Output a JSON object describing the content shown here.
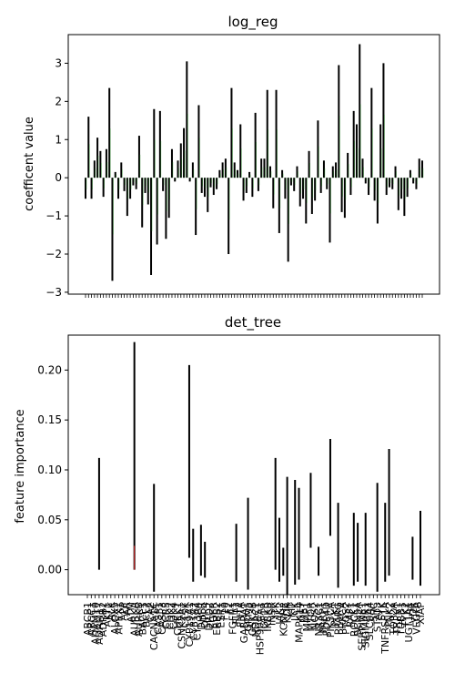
{
  "chart_data": [
    {
      "type": "bar",
      "title": "log_reg",
      "ylabel": "coefficent value",
      "xlabel": "",
      "ylim": [
        -3.05,
        3.75
      ],
      "yticks": [
        3,
        2,
        1,
        0,
        -1,
        -2,
        -3
      ],
      "ytick_labels": [
        "3",
        "2",
        "1",
        "0",
        "−1",
        "−2",
        "−3"
      ],
      "category_labels_shown": false,
      "grid": false,
      "bar_color": "#000000",
      "accent_color": "#2ca02c",
      "values": [
        -0.55,
        1.6,
        -0.55,
        0.45,
        1.05,
        0.7,
        -0.5,
        0.75,
        2.35,
        -2.7,
        0.15,
        -0.55,
        0.4,
        -0.35,
        -1.0,
        -0.55,
        -0.2,
        -0.3,
        1.1,
        -1.3,
        -0.4,
        -0.7,
        -2.55,
        1.8,
        -1.75,
        1.75,
        -0.35,
        -1.6,
        -1.05,
        0.75,
        -0.1,
        0.45,
        0.9,
        1.3,
        3.05,
        -0.1,
        0.4,
        -1.5,
        1.9,
        -0.4,
        -0.5,
        -0.9,
        -0.25,
        -0.45,
        -0.3,
        0.2,
        0.4,
        0.5,
        -2.0,
        2.35,
        0.4,
        0.2,
        1.4,
        -0.6,
        -0.4,
        0.15,
        -0.5,
        1.7,
        -0.35,
        0.5,
        0.5,
        2.3,
        0.3,
        -0.8,
        2.3,
        -1.45,
        0.2,
        -0.55,
        -2.2,
        -0.2,
        -0.35,
        0.3,
        -0.75,
        -0.55,
        -1.2,
        0.7,
        -0.95,
        -0.6,
        1.5,
        -0.4,
        0.45,
        -0.3,
        -1.7,
        0.3,
        0.4,
        2.95,
        -0.9,
        -1.05,
        0.65,
        -0.45,
        1.75,
        1.4,
        3.5,
        0.5,
        -0.15,
        -0.45,
        2.35,
        -0.6,
        -1.2,
        1.4,
        3.0,
        -0.45,
        -0.25,
        -0.3,
        0.3,
        -0.85,
        -0.55,
        -1.0,
        -0.5,
        0.2,
        -0.15,
        -0.3,
        0.5,
        0.45
      ]
    },
    {
      "type": "bar",
      "title": "det_tree",
      "ylabel": "feature importance",
      "xlabel": "",
      "ylim": [
        -0.025,
        0.235
      ],
      "yticks": [
        0.2,
        0.15,
        0.1,
        0.05,
        0.0
      ],
      "ytick_labels": [
        "0.20",
        "0.15",
        "0.10",
        "0.05",
        "0.00"
      ],
      "grid": false,
      "bar_color": "#000000",
      "accent_color": "#d62728",
      "category_labels": [
        "ABCB1",
        "ABCC1",
        "ADAM10",
        "ADAM17",
        "ADRB2",
        "AKT1",
        "ALK",
        "ALOX5",
        "APEX1",
        "APP",
        "AR",
        "ATM",
        "AURKA",
        "AURKB",
        "BACE1",
        "BCL2",
        "CA2",
        "CACNA1C",
        "CASP1",
        "CASP3",
        "CCR5",
        "CDK2",
        "CDK4",
        "CHEK1",
        "CSNK2A1",
        "CTSK",
        "CYP19A1",
        "CYP1A2",
        "CYP3A4",
        "DHFR",
        "DPP4",
        "DRD2",
        "EGFR",
        "ERBB2",
        "ESR1",
        "F10",
        "F2",
        "FGFR1",
        "FLT3",
        "FNTA",
        "GABRA1",
        "GRM5",
        "GSK3B",
        "HDAC1",
        "HSP90AA1",
        "IGF1R",
        "IKBKB",
        "INSR",
        "ITK",
        "JAK2",
        "KCNH2",
        "KDR",
        "KIT",
        "LCK",
        "MAPK14",
        "MET",
        "MMP1",
        "MTOR",
        "NOS2",
        "NR3C1",
        "PARP1",
        "PDE4D",
        "PIK3CA",
        "PLK1",
        "PPARG",
        "PRKCA",
        "PTGS2",
        "RAF1",
        "ROCK1",
        "SCN5A",
        "SERPINE1",
        "SIGMAR1",
        "SLC6A4",
        "SRC",
        "STAT3",
        "SYK",
        "TNFRSF1A",
        "TNK2",
        "TOP2A",
        "TRPV1",
        "TUBB1",
        "TYK2",
        "UGT1A1",
        "VDR",
        "VEGFA",
        "XIAP"
      ],
      "bars": [
        {
          "category": "ADAM17",
          "low": 0.0,
          "high": 0.112
        },
        {
          "category": "AURKA",
          "low": 0.0,
          "high": 0.228
        },
        {
          "category": "CACNA1C",
          "low": -0.022,
          "high": 0.086
        },
        {
          "category": "CYP19A1",
          "low": 0.012,
          "high": 0.205
        },
        {
          "category": "CYP1A2",
          "low": -0.012,
          "high": 0.041
        },
        {
          "category": "DHFR",
          "low": -0.006,
          "high": 0.045
        },
        {
          "category": "DPP4",
          "low": -0.008,
          "high": 0.028
        },
        {
          "category": "FLT3",
          "low": -0.012,
          "high": 0.046
        },
        {
          "category": "GRM5",
          "low": -0.02,
          "high": 0.072
        },
        {
          "category": "ITK",
          "low": 0.0,
          "high": 0.112
        },
        {
          "category": "JAK2",
          "low": -0.012,
          "high": 0.052
        },
        {
          "category": "KCNH2",
          "low": -0.006,
          "high": 0.022
        },
        {
          "category": "KDR",
          "low": -0.025,
          "high": 0.093
        },
        {
          "category": "LCK",
          "low": -0.015,
          "high": 0.09
        },
        {
          "category": "MAPK14",
          "low": -0.01,
          "high": 0.082
        },
        {
          "category": "MTOR",
          "low": 0.022,
          "high": 0.097
        },
        {
          "category": "NR3C1",
          "low": -0.006,
          "high": 0.023
        },
        {
          "category": "PIK3CA",
          "low": 0.034,
          "high": 0.131
        },
        {
          "category": "PPARG",
          "low": -0.018,
          "high": 0.067
        },
        {
          "category": "ROCK1",
          "low": -0.016,
          "high": 0.057
        },
        {
          "category": "SCN5A",
          "low": -0.012,
          "high": 0.047
        },
        {
          "category": "SIGMAR1",
          "low": -0.016,
          "high": 0.057
        },
        {
          "category": "STAT3",
          "low": -0.022,
          "high": 0.087
        },
        {
          "category": "TNFRSF1A",
          "low": -0.012,
          "high": 0.067
        },
        {
          "category": "TNK2",
          "low": -0.006,
          "high": 0.121
        },
        {
          "category": "VDR",
          "low": -0.01,
          "high": 0.033
        },
        {
          "category": "XIAP",
          "low": -0.016,
          "high": 0.059
        }
      ],
      "highlight": {
        "category": "AURKA",
        "low": 0.0,
        "high": 0.024
      }
    }
  ]
}
